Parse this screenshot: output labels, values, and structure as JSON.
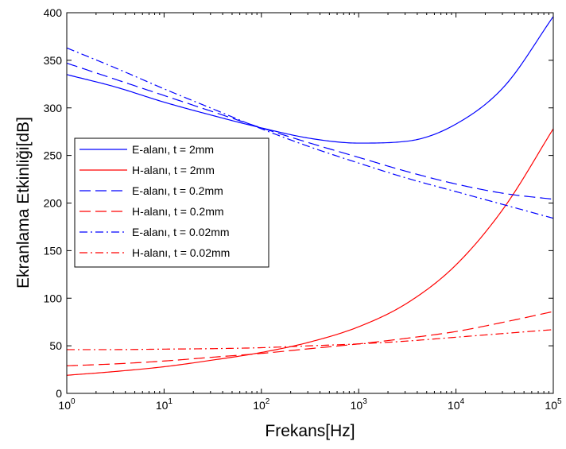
{
  "chart_data": {
    "type": "line",
    "xscale": "log",
    "xlabel": "Frekans[Hz]",
    "ylabel": "Ekranlama Etkinliği[dB]",
    "xlim": [
      1,
      100000
    ],
    "ylim": [
      0,
      400
    ],
    "x_ticks": [
      {
        "base": "10",
        "exp": "0",
        "value": 1
      },
      {
        "base": "10",
        "exp": "1",
        "value": 10
      },
      {
        "base": "10",
        "exp": "2",
        "value": 100
      },
      {
        "base": "10",
        "exp": "3",
        "value": 1000
      },
      {
        "base": "10",
        "exp": "4",
        "value": 10000
      },
      {
        "base": "10",
        "exp": "5",
        "value": 100000
      }
    ],
    "y_ticks": [
      "0",
      "50",
      "100",
      "150",
      "200",
      "250",
      "300",
      "350",
      "400"
    ],
    "grid": false,
    "legend_position": "left-middle",
    "series": [
      {
        "name": "E-alanı, t = 2mm",
        "color": "#0000ff",
        "style": "solid",
        "x": [
          1,
          3.16,
          10,
          31.6,
          100,
          316,
          1000,
          3162,
          10000,
          31623,
          100000
        ],
        "y": [
          335,
          322,
          306,
          292,
          279,
          268,
          263,
          265,
          283,
          323,
          396
        ]
      },
      {
        "name": "H-alanı, t = 2mm",
        "color": "#ff0000",
        "style": "solid",
        "x": [
          1,
          3.16,
          10,
          31.6,
          100,
          316,
          1000,
          3162,
          10000,
          31623,
          100000
        ],
        "y": [
          19,
          23,
          28,
          35,
          43,
          54,
          70,
          95,
          135,
          196,
          278
        ]
      },
      {
        "name": "E-alanı, t = 0.2mm",
        "color": "#0000ff",
        "style": "dashed",
        "x": [
          1,
          3.16,
          10,
          31.6,
          100,
          316,
          1000,
          3162,
          10000,
          31623,
          100000
        ],
        "y": [
          347,
          330,
          313,
          296,
          279,
          263,
          248,
          233,
          220,
          210,
          204
        ]
      },
      {
        "name": "H-alanı, t = 0.2mm",
        "color": "#ff0000",
        "style": "dashed",
        "x": [
          1,
          3.16,
          10,
          31.6,
          100,
          316,
          1000,
          3162,
          10000,
          31623,
          100000
        ],
        "y": [
          29,
          31,
          34,
          38,
          42,
          47,
          52,
          58,
          65,
          75,
          86
        ]
      },
      {
        "name": "E-alanı, t = 0.02mm",
        "color": "#0000ff",
        "style": "dashdot",
        "x": [
          1,
          3.16,
          10,
          31.6,
          100,
          316,
          1000,
          3162,
          10000,
          31623,
          100000
        ],
        "y": [
          363,
          342,
          320,
          299,
          278,
          259,
          242,
          226,
          212,
          198,
          184
        ]
      },
      {
        "name": "H-alanı, t = 0.02mm",
        "color": "#ff0000",
        "style": "dashdot",
        "x": [
          1,
          3.16,
          10,
          31.6,
          100,
          316,
          1000,
          3162,
          10000,
          31623,
          100000
        ],
        "y": [
          46,
          46,
          46.5,
          47,
          48,
          50,
          52,
          55,
          59,
          63,
          67
        ]
      }
    ]
  }
}
